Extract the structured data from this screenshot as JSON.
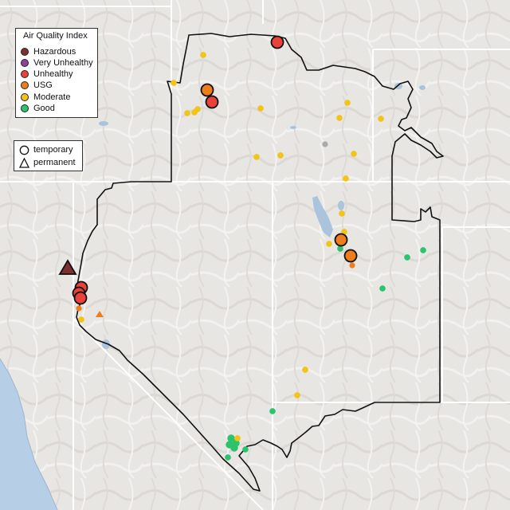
{
  "legend": {
    "title": "Air Quality Index",
    "categories": [
      {
        "label": "Hazardous",
        "color": "#7e2f2f"
      },
      {
        "label": "Very Unhealthy",
        "color": "#8e3fa0"
      },
      {
        "label": "Unhealthy",
        "color": "#e8423a"
      },
      {
        "label": "USG",
        "color": "#ee7d1b"
      },
      {
        "label": "Moderate",
        "color": "#f2c418"
      },
      {
        "label": "Good",
        "color": "#2dc36b"
      }
    ],
    "types": [
      {
        "label": "temporary",
        "icon": "circle-icon"
      },
      {
        "label": "permanent",
        "icon": "triangle-icon"
      }
    ]
  },
  "colors": {
    "border": "#111111",
    "state_line": "#ffffff",
    "ocean": "#b6cfe6",
    "lake": "#a9c4dc",
    "nodata": "#a9a9a9"
  },
  "monitors_summary": {
    "hazardous": 1,
    "unhealthy": 6,
    "usg": 6,
    "moderate": 24,
    "good": 12,
    "no_data": 1
  }
}
